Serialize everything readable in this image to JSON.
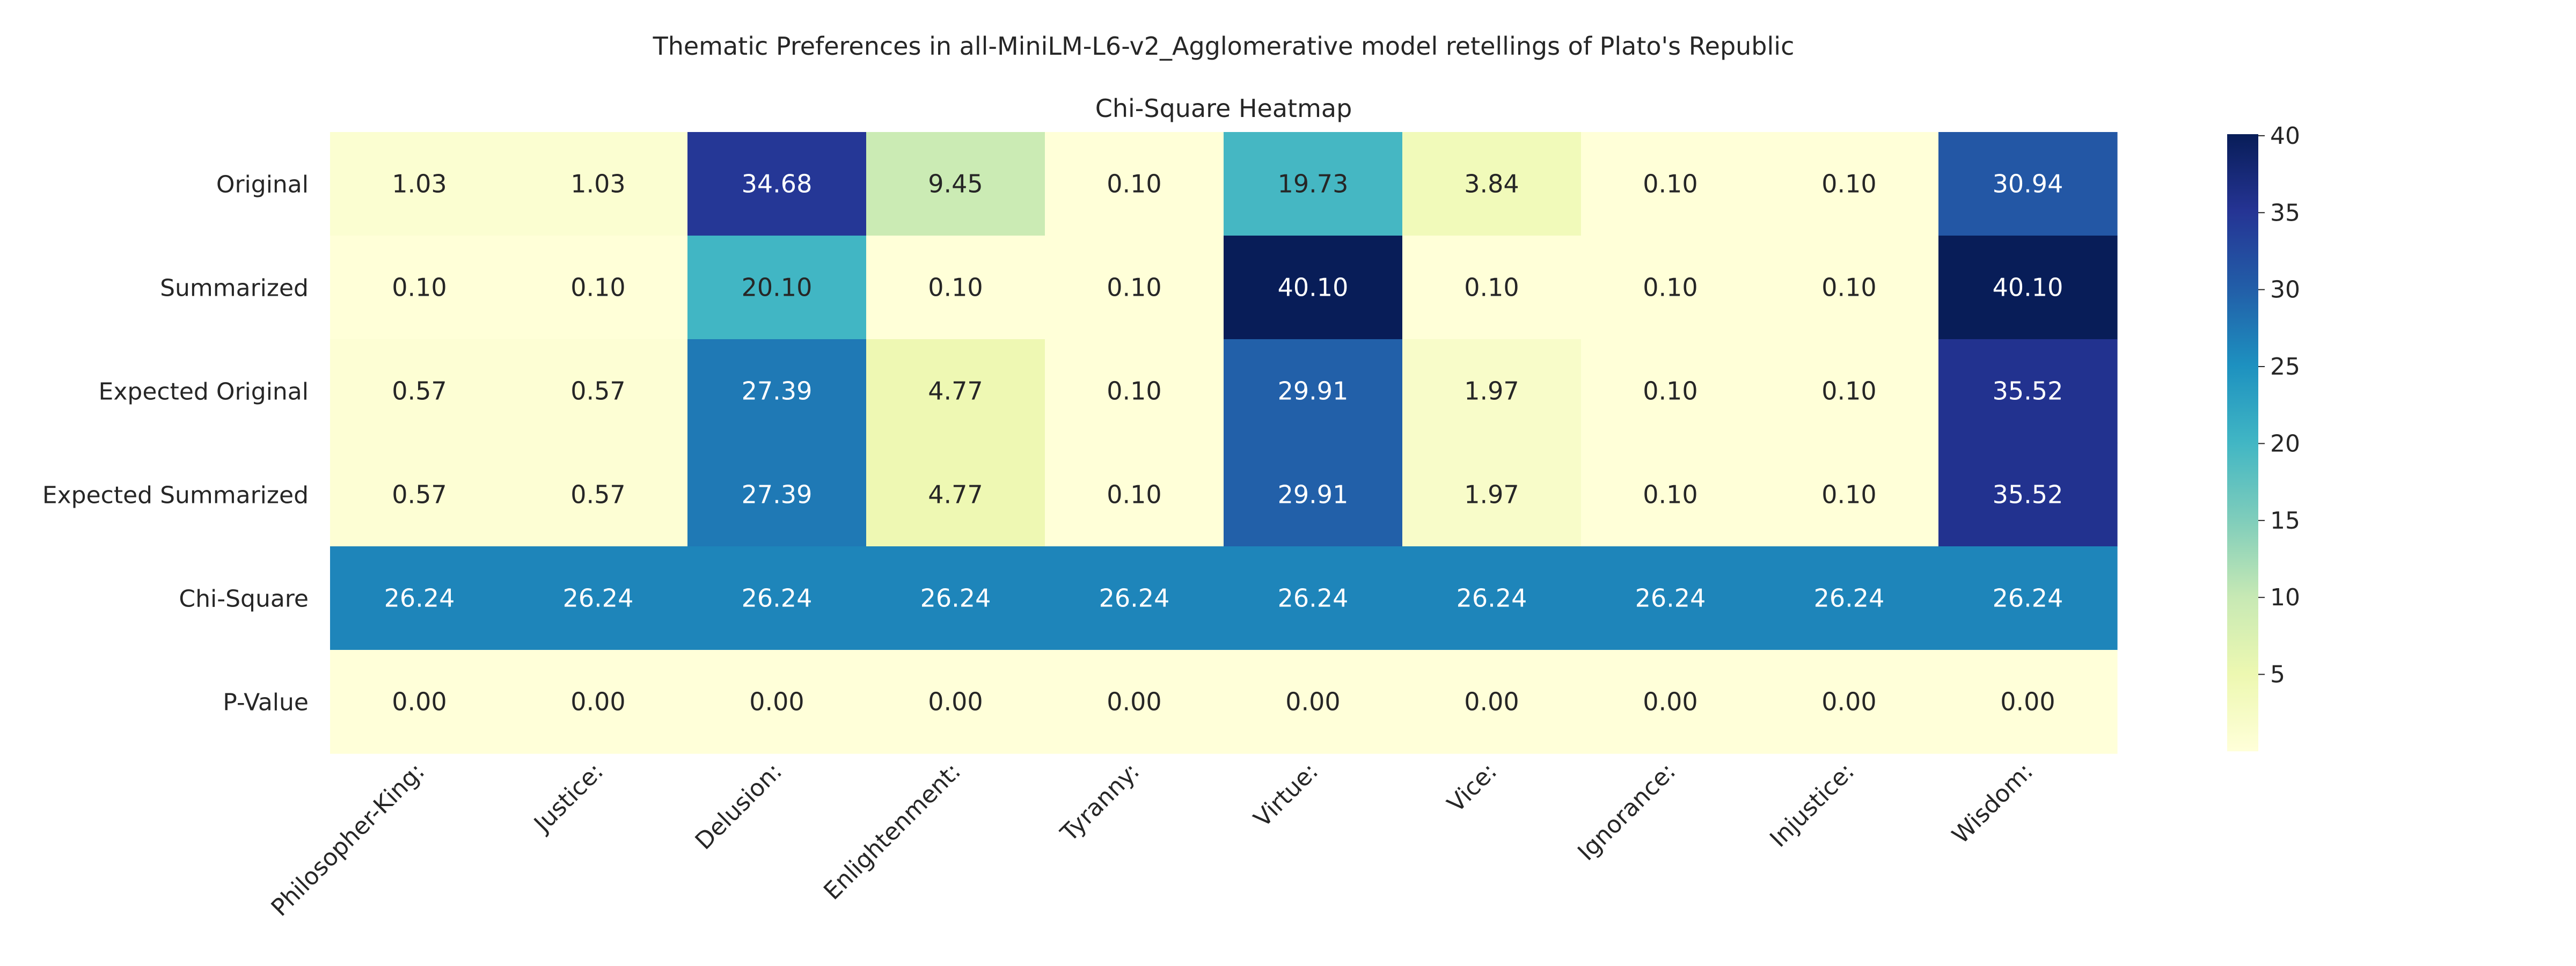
{
  "chart_data": {
    "type": "heatmap",
    "title": "Thematic Preferences in all-MiniLM-L6-v2_Agglomerative model retellings of Plato's Republic",
    "subtitle": "Chi-Square Heatmap",
    "columns": [
      "Philosopher-King:",
      "Justice:",
      "Delusion:",
      "Enlightenment:",
      "Tyranny:",
      "Virtue:",
      "Vice:",
      "Ignorance:",
      "Injustice:",
      "Wisdom:"
    ],
    "rows": [
      "Original",
      "Summarized",
      "Expected Original",
      "Expected Summarized",
      "Chi-Square",
      "P-Value"
    ],
    "values": [
      [
        1.03,
        1.03,
        34.68,
        9.45,
        0.1,
        19.73,
        3.84,
        0.1,
        0.1,
        30.94
      ],
      [
        0.1,
        0.1,
        20.1,
        0.1,
        0.1,
        40.1,
        0.1,
        0.1,
        0.1,
        40.1
      ],
      [
        0.57,
        0.57,
        27.39,
        4.77,
        0.1,
        29.91,
        1.97,
        0.1,
        0.1,
        35.52
      ],
      [
        0.57,
        0.57,
        27.39,
        4.77,
        0.1,
        29.91,
        1.97,
        0.1,
        0.1,
        35.52
      ],
      [
        26.24,
        26.24,
        26.24,
        26.24,
        26.24,
        26.24,
        26.24,
        26.24,
        26.24,
        26.24
      ],
      [
        0.0,
        0.0,
        0.0,
        0.0,
        0.0,
        0.0,
        0.0,
        0.0,
        0.0,
        0.0
      ]
    ],
    "value_format": "2 decimals",
    "colormap": "YlGnBu",
    "color_range": [
      0,
      40.1
    ],
    "colorbar_ticks": [
      5,
      10,
      15,
      20,
      25,
      30,
      35,
      40
    ],
    "colorbar_stops": [
      "#ffffd9",
      "#edf8b1",
      "#c7e9b4",
      "#7fcdbb",
      "#41b6c4",
      "#1d91c0",
      "#225ea8",
      "#253494",
      "#081d58"
    ],
    "grid": false,
    "legend": "colorbar right"
  }
}
